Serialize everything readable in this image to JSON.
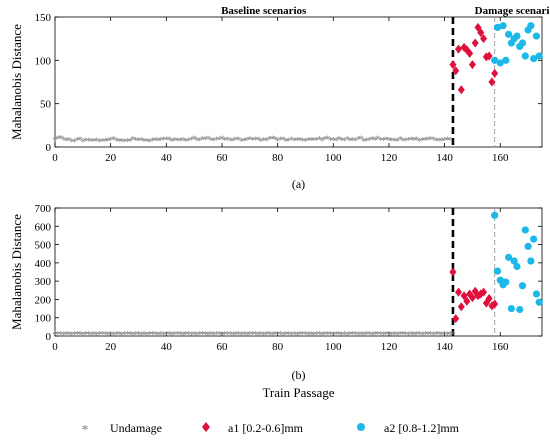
{
  "colors": {
    "undamage": "#808080",
    "a1": "#e0103c",
    "a2": "#1cb8e8"
  },
  "legend": {
    "undamage": "Undamage",
    "a1": "a1 [0.2-0.6]mm",
    "a2": "a2 [0.8-1.2]mm"
  },
  "chart_data": [
    {
      "type": "scatter",
      "panel_label": "(a)",
      "title": "",
      "xlabel": "",
      "ylabel": "Mahalanobis Distance",
      "xlim": [
        0,
        175
      ],
      "ylim": [
        0,
        150
      ],
      "xticks": [
        0,
        20,
        40,
        60,
        80,
        100,
        120,
        140,
        160
      ],
      "yticks": [
        0,
        50,
        100,
        150
      ],
      "annotations": [
        {
          "text": "Baseline scenarios",
          "x": 75
        },
        {
          "text": "Damage scenarios",
          "x": 166
        }
      ],
      "vlines": [
        {
          "x": 143,
          "style": "thick-dashed"
        },
        {
          "x": 158,
          "style": "thin-dashed"
        }
      ],
      "series": [
        {
          "key": "undamage",
          "values": [
            9.5,
            10.2,
            10.8,
            9.1,
            7.9,
            8.6,
            7.2,
            7.0,
            8.8,
            9.4,
            7.1,
            7.8,
            8.1,
            7.6,
            7.5,
            7.9,
            7.2,
            7.3,
            7.5,
            8.1,
            8.9,
            9.6,
            8.2,
            7.4,
            7.5,
            7.0,
            7.6,
            7.4,
            9.7,
            8.8,
            8.3,
            8.4,
            7.6,
            7.5,
            7.2,
            8.0,
            8.8,
            7.9,
            8.4,
            9.3,
            9.5,
            9.4,
            7.6,
            8.5,
            7.9,
            8.3,
            8.5,
            7.7,
            8.2,
            9.4,
            10.1,
            8.9,
            8.2,
            9.9,
            9.5,
            10.3,
            8.7,
            8.3,
            9.0,
            9.4,
            10.2,
            8.9,
            9.2,
            7.9,
            8.2,
            9.1,
            9.3,
            7.6,
            8.0,
            8.8,
            9.7,
            8.9,
            9.1,
            9.1,
            7.6,
            8.6,
            7.8,
            9.7,
            10.3,
            10.0,
            8.2,
            9.3,
            9.0,
            7.6,
            7.9,
            9.3,
            7.8,
            8.7,
            8.8,
            8.2,
            7.7,
            8.4,
            8.6,
            8.5,
            8.6,
            9.9,
            8.3,
            9.8,
            10.3,
            8.7,
            8.4,
            8.0,
            9.8,
            8.7,
            8.0,
            9.9,
            7.9,
            8.4,
            8.3,
            9.7,
            10.2,
            7.6,
            8.3,
            8.9,
            9.9,
            8.6,
            10.3,
            8.8,
            8.4,
            9.4,
            8.8,
            8.0,
            7.8,
            7.7,
            9.6,
            8.3,
            7.8,
            8.6,
            9.1,
            8.6,
            9.4,
            7.6,
            8.9,
            8.4,
            9.3,
            9.6,
            9.2,
            8.3,
            8.2,
            7.8,
            8.6,
            9.2,
            8.8
          ]
        },
        {
          "key": "a1",
          "x": [
            143,
            144,
            145,
            146,
            147,
            148,
            149,
            150,
            151,
            152,
            153,
            154,
            155,
            156,
            157,
            158
          ],
          "values": [
            95,
            88,
            113,
            66,
            115,
            112,
            108,
            95,
            120,
            138,
            132,
            125,
            104,
            105,
            75,
            85
          ]
        },
        {
          "key": "a2",
          "x": [
            158,
            159,
            160,
            161,
            162,
            163,
            164,
            165,
            166,
            167,
            168,
            169,
            170,
            171,
            172,
            173,
            174
          ],
          "values": [
            100,
            138,
            97,
            140,
            100,
            130,
            120,
            125,
            128,
            116,
            120,
            105,
            135,
            140,
            102,
            128,
            105
          ]
        }
      ]
    },
    {
      "type": "scatter",
      "panel_label": "(b)",
      "title": "",
      "xlabel": "Train Passage",
      "ylabel": "Mahalanobis Distance",
      "xlim": [
        0,
        175
      ],
      "ylim": [
        0,
        700
      ],
      "xticks": [
        0,
        20,
        40,
        60,
        80,
        100,
        120,
        140,
        160
      ],
      "yticks": [
        0,
        100,
        200,
        300,
        400,
        500,
        600,
        700
      ],
      "annotations": [],
      "vlines": [
        {
          "x": 143,
          "style": "thick-dashed"
        },
        {
          "x": 158,
          "style": "thin-dashed"
        }
      ],
      "series": [
        {
          "key": "undamage",
          "values": [
            14,
            15,
            13,
            12,
            13,
            14,
            12,
            13,
            14,
            13,
            12,
            13,
            14,
            12,
            13,
            12,
            13,
            14,
            13,
            12,
            13,
            12,
            14,
            13,
            12,
            13,
            14,
            13,
            12,
            13,
            14,
            12,
            13,
            12,
            13,
            14,
            13,
            12,
            13,
            12,
            14,
            13,
            12,
            13,
            14,
            13,
            12,
            13,
            14,
            12,
            13,
            12,
            13,
            14,
            13,
            12,
            13,
            12,
            14,
            13,
            12,
            13,
            14,
            13,
            12,
            13,
            14,
            12,
            13,
            12,
            13,
            14,
            13,
            12,
            13,
            12,
            14,
            13,
            12,
            13,
            14,
            13,
            12,
            13,
            14,
            12,
            13,
            12,
            13,
            14,
            13,
            12,
            13,
            12,
            14,
            13,
            12,
            13,
            14,
            13,
            12,
            13,
            14,
            12,
            13,
            12,
            13,
            14,
            13,
            12,
            13,
            12,
            14,
            13,
            12,
            13,
            14,
            13,
            12,
            13,
            14,
            12,
            13,
            12,
            13,
            14,
            13,
            12,
            13,
            12,
            14,
            13,
            12,
            13,
            14,
            13,
            12,
            13,
            14,
            12,
            13,
            12,
            13,
            14
          ]
        },
        {
          "key": "a1",
          "x": [
            143,
            144,
            145,
            146,
            147,
            148,
            149,
            150,
            151,
            152,
            153,
            154,
            155,
            156,
            157,
            158
          ],
          "values": [
            350,
            95,
            240,
            160,
            220,
            190,
            230,
            210,
            245,
            220,
            230,
            240,
            180,
            205,
            165,
            175
          ]
        },
        {
          "key": "a2",
          "x": [
            158,
            159,
            160,
            161,
            162,
            163,
            164,
            165,
            166,
            167,
            168,
            169,
            170,
            171,
            172,
            173,
            174
          ],
          "values": [
            660,
            355,
            305,
            280,
            295,
            430,
            150,
            410,
            380,
            145,
            275,
            580,
            490,
            410,
            530,
            230,
            185
          ]
        }
      ]
    }
  ]
}
